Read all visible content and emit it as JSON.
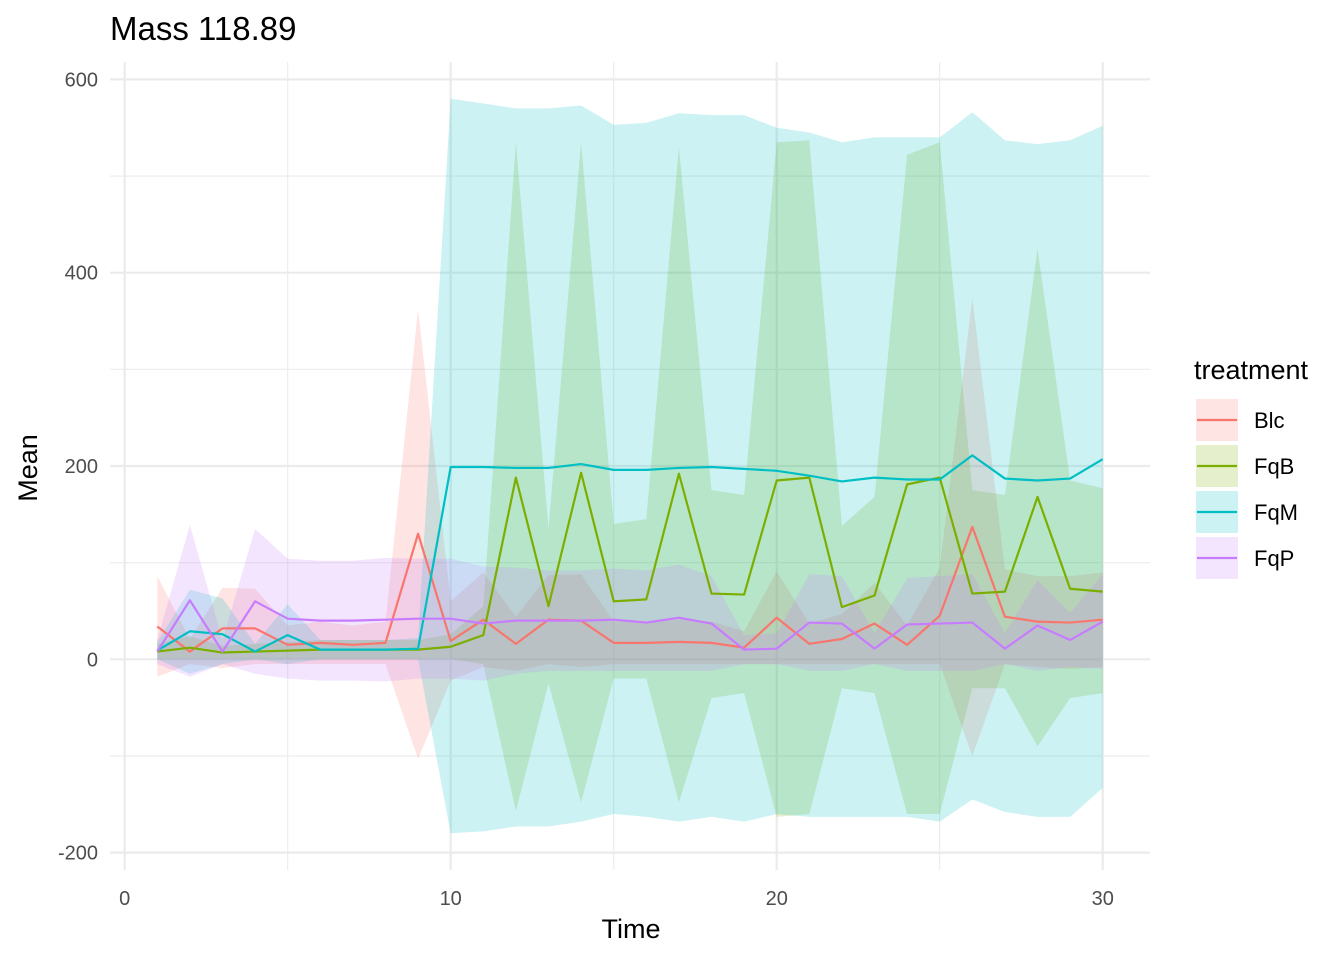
{
  "chart_data": {
    "type": "line",
    "title": "Mass 118.89",
    "xlabel": "Time",
    "ylabel": "Mean",
    "xlim": [
      -0.45,
      31.45
    ],
    "ylim": [
      -218,
      618
    ],
    "x_ticks": [
      0,
      10,
      20,
      30
    ],
    "x_tick_labels": [
      "0",
      "10",
      "20",
      "30"
    ],
    "y_ticks": [
      -200,
      0,
      200,
      400,
      600
    ],
    "y_tick_labels": [
      "-200",
      "0",
      "200",
      "400",
      "600"
    ],
    "x_minor_ticks": [
      5,
      15,
      25
    ],
    "y_minor_ticks": [
      -100,
      100,
      300,
      500
    ],
    "grid": true,
    "legend": {
      "title": "treatment",
      "position": "right"
    },
    "x": [
      1,
      2,
      3,
      4,
      5,
      6,
      7,
      8,
      9,
      10,
      11,
      12,
      13,
      14,
      15,
      16,
      17,
      18,
      19,
      20,
      21,
      22,
      23,
      24,
      25,
      26,
      27,
      28,
      29,
      30
    ],
    "series": [
      {
        "name": "Blc",
        "color": "#F8766D",
        "fill": "#F8766D",
        "values": [
          34,
          8,
          32,
          32,
          15,
          17,
          15,
          17,
          130,
          19,
          41,
          16,
          41,
          40,
          17,
          17,
          18,
          17,
          12,
          43,
          16,
          21,
          37,
          15,
          45,
          137,
          44,
          39,
          38,
          41
        ],
        "lower": [
          -18,
          -5,
          -9,
          -5,
          -5,
          -5,
          -5,
          -5,
          -103,
          -22,
          -8,
          -12,
          -5,
          -8,
          -5,
          -5,
          -5,
          -5,
          -5,
          -5,
          -5,
          -5,
          -5,
          -5,
          -5,
          -100,
          -5,
          -8,
          -10,
          -8
        ],
        "upper": [
          86,
          21,
          74,
          73,
          35,
          39,
          35,
          39,
          362,
          60,
          90,
          44,
          87,
          88,
          39,
          39,
          41,
          39,
          29,
          91,
          37,
          47,
          79,
          35,
          95,
          374,
          93,
          86,
          86,
          90
        ]
      },
      {
        "name": "FqB",
        "color": "#7CAE00",
        "fill": "#7CAE00",
        "values": [
          8,
          12,
          7,
          8,
          9,
          10,
          10,
          10,
          10,
          13,
          25,
          188,
          55,
          193,
          60,
          62,
          192,
          68,
          67,
          185,
          188,
          54,
          66,
          181,
          188,
          68,
          70,
          168,
          73,
          70
        ],
        "lower": [
          0,
          0,
          0,
          0,
          0,
          0,
          0,
          0,
          0,
          0,
          -5,
          -157,
          -25,
          -148,
          -20,
          -20,
          -148,
          -40,
          -35,
          -163,
          -160,
          -30,
          -35,
          -160,
          -160,
          -30,
          -30,
          -90,
          -40,
          -35
        ],
        "upper": [
          16,
          24,
          14,
          16,
          18,
          20,
          20,
          20,
          20,
          26,
          55,
          535,
          135,
          535,
          140,
          145,
          530,
          175,
          170,
          535,
          537,
          138,
          168,
          522,
          535,
          175,
          170,
          425,
          185,
          177
        ]
      },
      {
        "name": "FqM",
        "color": "#00BFC4",
        "fill": "#00BFC4",
        "values": [
          9,
          29,
          26,
          8,
          25,
          10,
          10,
          10,
          11,
          199,
          199,
          198,
          198,
          202,
          196,
          196,
          198,
          199,
          197,
          195,
          190,
          184,
          188,
          186,
          186,
          211,
          187,
          185,
          187,
          207
        ],
        "lower": [
          0,
          -15,
          -5,
          0,
          -5,
          0,
          0,
          0,
          0,
          -180,
          -178,
          -173,
          -173,
          -168,
          -160,
          -163,
          -168,
          -163,
          -168,
          -160,
          -163,
          -163,
          -163,
          -163,
          -168,
          -145,
          -158,
          -163,
          -163,
          -133
        ],
        "upper": [
          18,
          72,
          63,
          16,
          57,
          20,
          20,
          20,
          22,
          580,
          575,
          570,
          570,
          573,
          553,
          555,
          565,
          563,
          563,
          550,
          545,
          535,
          540,
          540,
          540,
          566,
          537,
          533,
          537,
          552
        ]
      },
      {
        "name": "FqP",
        "color": "#C77CFF",
        "fill": "#C77CFF",
        "values": [
          8,
          61,
          8,
          60,
          42,
          40,
          40,
          41,
          42,
          42,
          37,
          40,
          40,
          40,
          41,
          38,
          43,
          37,
          10,
          11,
          38,
          37,
          11,
          36,
          37,
          38,
          11,
          35,
          20,
          39
        ],
        "lower": [
          -5,
          -18,
          -5,
          -15,
          -20,
          -22,
          -22,
          -23,
          -20,
          -20,
          -22,
          -15,
          -12,
          -12,
          -12,
          -12,
          -12,
          -12,
          -5,
          -5,
          -12,
          -12,
          -5,
          -12,
          -12,
          -12,
          -5,
          -12,
          -8,
          -10
        ],
        "upper": [
          20,
          139,
          20,
          135,
          104,
          102,
          102,
          105,
          104,
          104,
          96,
          95,
          92,
          92,
          94,
          92,
          98,
          86,
          25,
          27,
          88,
          86,
          27,
          84,
          86,
          88,
          27,
          82,
          48,
          88
        ]
      }
    ]
  }
}
